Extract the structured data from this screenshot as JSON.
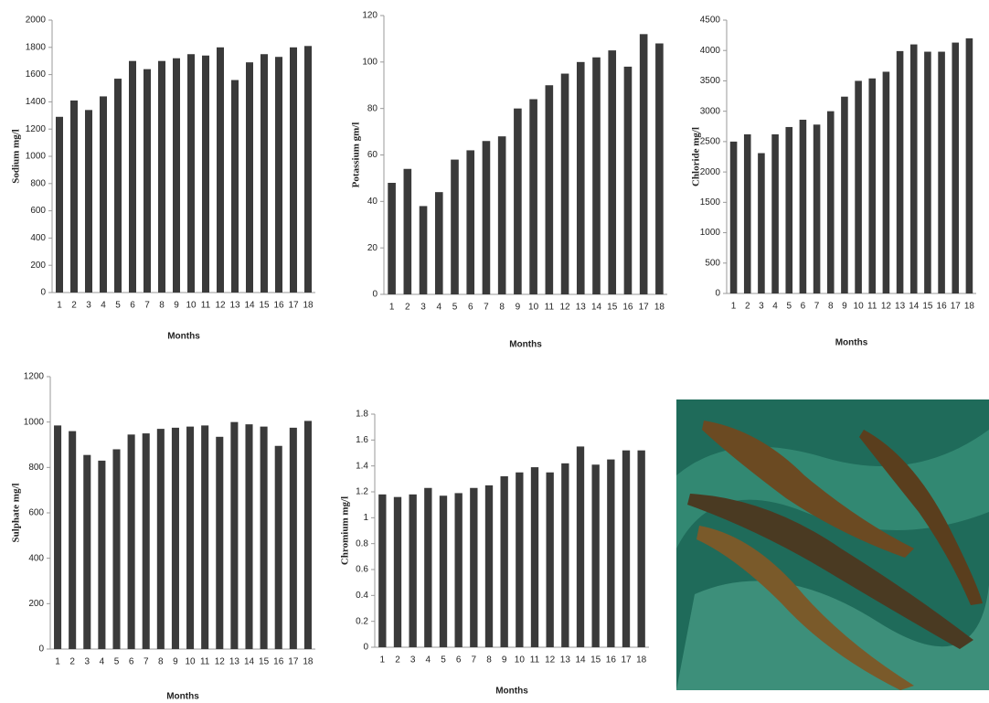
{
  "chart_data": [
    {
      "type": "bar",
      "y_label": "Sodium mg/l",
      "x_label": "Months",
      "color": "#3a3a3a",
      "categories": [
        "1",
        "2",
        "3",
        "4",
        "5",
        "6",
        "7",
        "8",
        "9",
        "10",
        "11",
        "12",
        "13",
        "14",
        "15",
        "16",
        "17",
        "18"
      ],
      "values": [
        1290,
        1410,
        1340,
        1440,
        1570,
        1700,
        1640,
        1700,
        1720,
        1750,
        1740,
        1800,
        1560,
        1690,
        1750,
        1730,
        1800,
        1810
      ],
      "ylim": [
        0,
        2000
      ],
      "yticks": [
        0,
        200,
        400,
        600,
        800,
        1000,
        1200,
        1400,
        1600,
        1800,
        2000
      ]
    },
    {
      "type": "bar",
      "y_label": "Potassium gm/l",
      "x_label": "Months",
      "color": "#3a3a3a",
      "categories": [
        "1",
        "2",
        "3",
        "4",
        "5",
        "6",
        "7",
        "8",
        "9",
        "10",
        "11",
        "12",
        "13",
        "14",
        "15",
        "16",
        "17",
        "18"
      ],
      "values": [
        48,
        54,
        38,
        44,
        58,
        62,
        66,
        68,
        80,
        84,
        90,
        95,
        100,
        102,
        105,
        98,
        112,
        108
      ],
      "ylim": [
        0,
        120
      ],
      "yticks": [
        0,
        20,
        40,
        60,
        80,
        100,
        120
      ]
    },
    {
      "type": "bar",
      "y_label": "Chloride mg/l",
      "x_label": "Months",
      "color": "#3a3a3a",
      "categories": [
        "1",
        "2",
        "3",
        "4",
        "5",
        "6",
        "7",
        "8",
        "9",
        "10",
        "11",
        "12",
        "13",
        "14",
        "15",
        "16",
        "17",
        "18"
      ],
      "values": [
        2500,
        2620,
        2310,
        2620,
        2740,
        2860,
        2780,
        3000,
        3240,
        3500,
        3540,
        3650,
        3990,
        4100,
        3980,
        3980,
        4130,
        4200
      ],
      "ylim": [
        0,
        4500
      ],
      "yticks": [
        0,
        500,
        1000,
        1500,
        2000,
        2500,
        3000,
        3500,
        4000,
        4500
      ]
    },
    {
      "type": "bar",
      "y_label": "Sulphate mg/l",
      "x_label": "Months",
      "color": "#3a3a3a",
      "categories": [
        "1",
        "2",
        "3",
        "4",
        "5",
        "6",
        "7",
        "8",
        "9",
        "10",
        "11",
        "12",
        "13",
        "14",
        "15",
        "16",
        "17",
        "18"
      ],
      "values": [
        985,
        960,
        855,
        830,
        880,
        945,
        950,
        970,
        975,
        980,
        985,
        935,
        1000,
        990,
        980,
        895,
        975,
        1005
      ],
      "ylim": [
        0,
        1200
      ],
      "yticks": [
        0,
        200,
        400,
        600,
        800,
        1000,
        1200
      ]
    },
    {
      "type": "bar",
      "y_label": "Chromium mg/l",
      "x_label": "Months",
      "color": "#3a3a3a",
      "categories": [
        "1",
        "2",
        "3",
        "4",
        "5",
        "6",
        "7",
        "8",
        "9",
        "10",
        "11",
        "12",
        "13",
        "14",
        "15",
        "16",
        "17",
        "18"
      ],
      "values": [
        1.18,
        1.16,
        1.18,
        1.23,
        1.17,
        1.19,
        1.23,
        1.25,
        1.32,
        1.35,
        1.39,
        1.35,
        1.42,
        1.55,
        1.41,
        1.45,
        1.52,
        1.52
      ],
      "ylim": [
        0,
        1.8
      ],
      "yticks": [
        0,
        0.2,
        0.4,
        0.6,
        0.8,
        1,
        1.2,
        1.4,
        1.6,
        1.8
      ]
    }
  ]
}
